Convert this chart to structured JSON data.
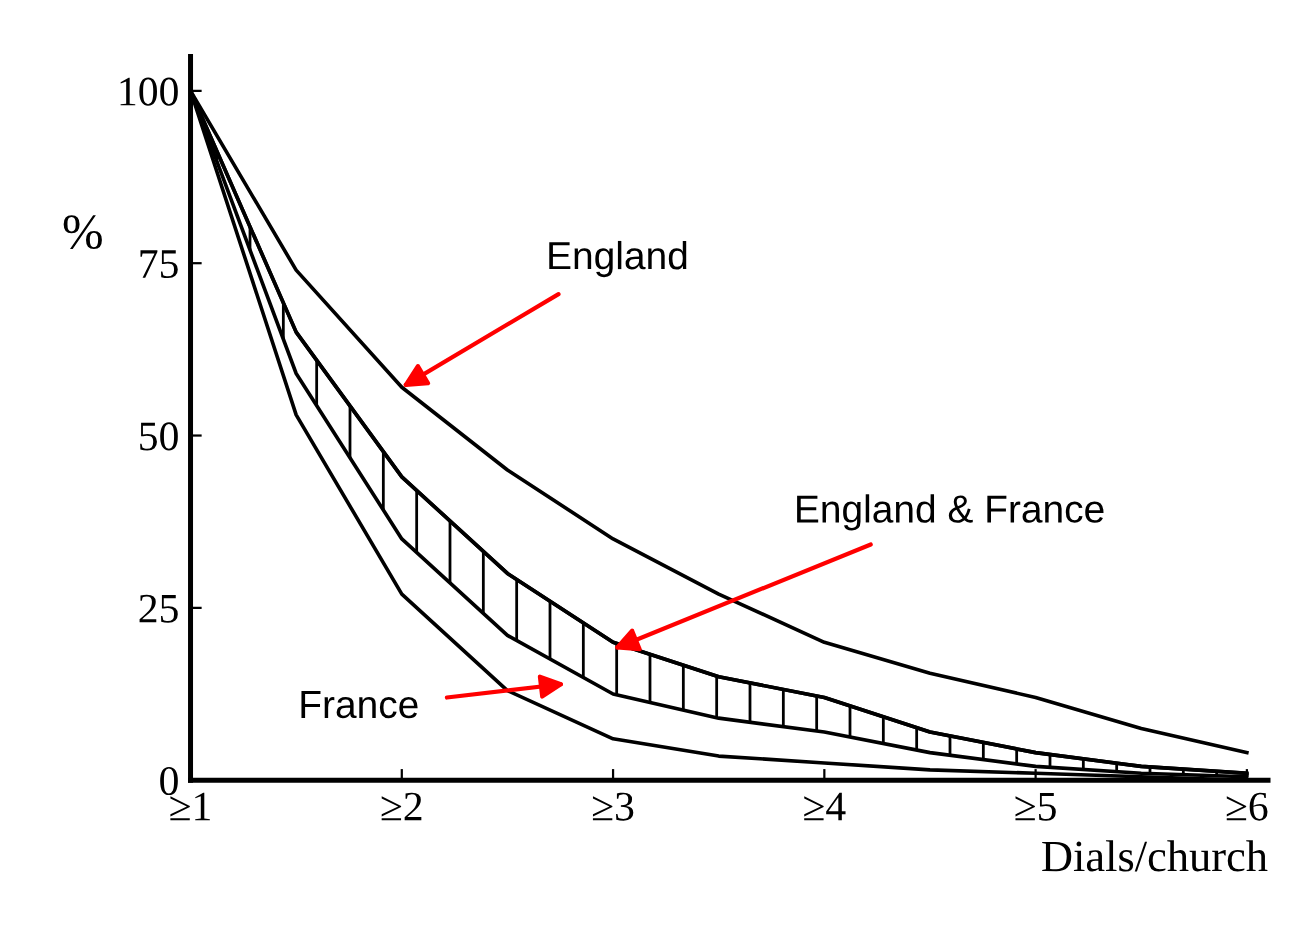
{
  "chart_data": {
    "type": "line",
    "xlabel": "Dials/church",
    "ylabel": "%",
    "categories": [
      "≥1",
      null,
      "≥2",
      null,
      "≥3",
      null,
      "≥4",
      null,
      "≥5",
      null,
      "≥6"
    ],
    "series": [
      {
        "color": "#000000",
        "values": [
          100,
          74,
          57,
          45,
          35,
          27,
          20,
          15.5,
          12,
          7.5,
          4
        ]
      },
      {
        "color": "#000000",
        "values": [
          100,
          65,
          44,
          30,
          20,
          15,
          12,
          7,
          4,
          2,
          1
        ],
        "lower": [
          100,
          59,
          35,
          21,
          12.5,
          9,
          7,
          4,
          2,
          1,
          0.5
        ],
        "upper": [
          100,
          65,
          44,
          30,
          20,
          15,
          12,
          7,
          4,
          2,
          1
        ]
      },
      {
        "color": "#000000",
        "values": [
          100,
          53,
          27,
          13,
          6,
          3.5,
          2.5,
          1.5,
          1,
          0.5,
          0
        ]
      }
    ],
    "annotations": [
      {
        "text": "England",
        "x": "≥2",
        "y": 57
      },
      {
        "text": "England & France",
        "x": "≥3",
        "y": 19
      },
      "France"
    ],
    "ylim": [
      0,
      105
    ],
    "yticks": [
      0,
      25,
      50,
      75,
      100
    ],
    "grid": false,
    "legend": false,
    "marker": "none",
    "line_style": "solid"
  }
}
